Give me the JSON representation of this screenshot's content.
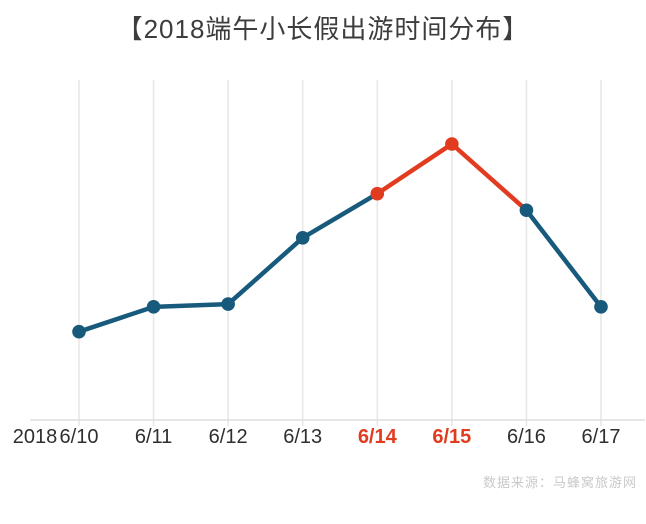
{
  "title": "【2018端午小长假出游时间分布】",
  "source": "数据来源：马蜂窝旅游网",
  "chart_data": {
    "type": "line",
    "title": "【2018端午小长假出游时间分布】",
    "year_label": "2018",
    "categories": [
      "6/10",
      "6/11",
      "6/12",
      "6/13",
      "6/14",
      "6/15",
      "6/16",
      "6/17"
    ],
    "values": [
      32,
      41,
      42,
      66,
      82,
      100,
      76,
      41
    ],
    "ylim": [
      0,
      100
    ],
    "xlabel": "",
    "ylabel": "",
    "legend": "none",
    "grid": "vertical-only",
    "highlight_indices": [
      4,
      5
    ],
    "red_segments": [
      [
        4,
        5
      ],
      [
        5,
        6
      ]
    ],
    "colors": {
      "line": "#175a7c",
      "highlight": "#e23c20",
      "grid": "#e8e8e8",
      "axis": "#dedede",
      "tick_label": "#2f2f2f",
      "tick_label_highlight": "#e23c20",
      "title": "#3d3d3d",
      "source": "#c9c9c9"
    }
  }
}
